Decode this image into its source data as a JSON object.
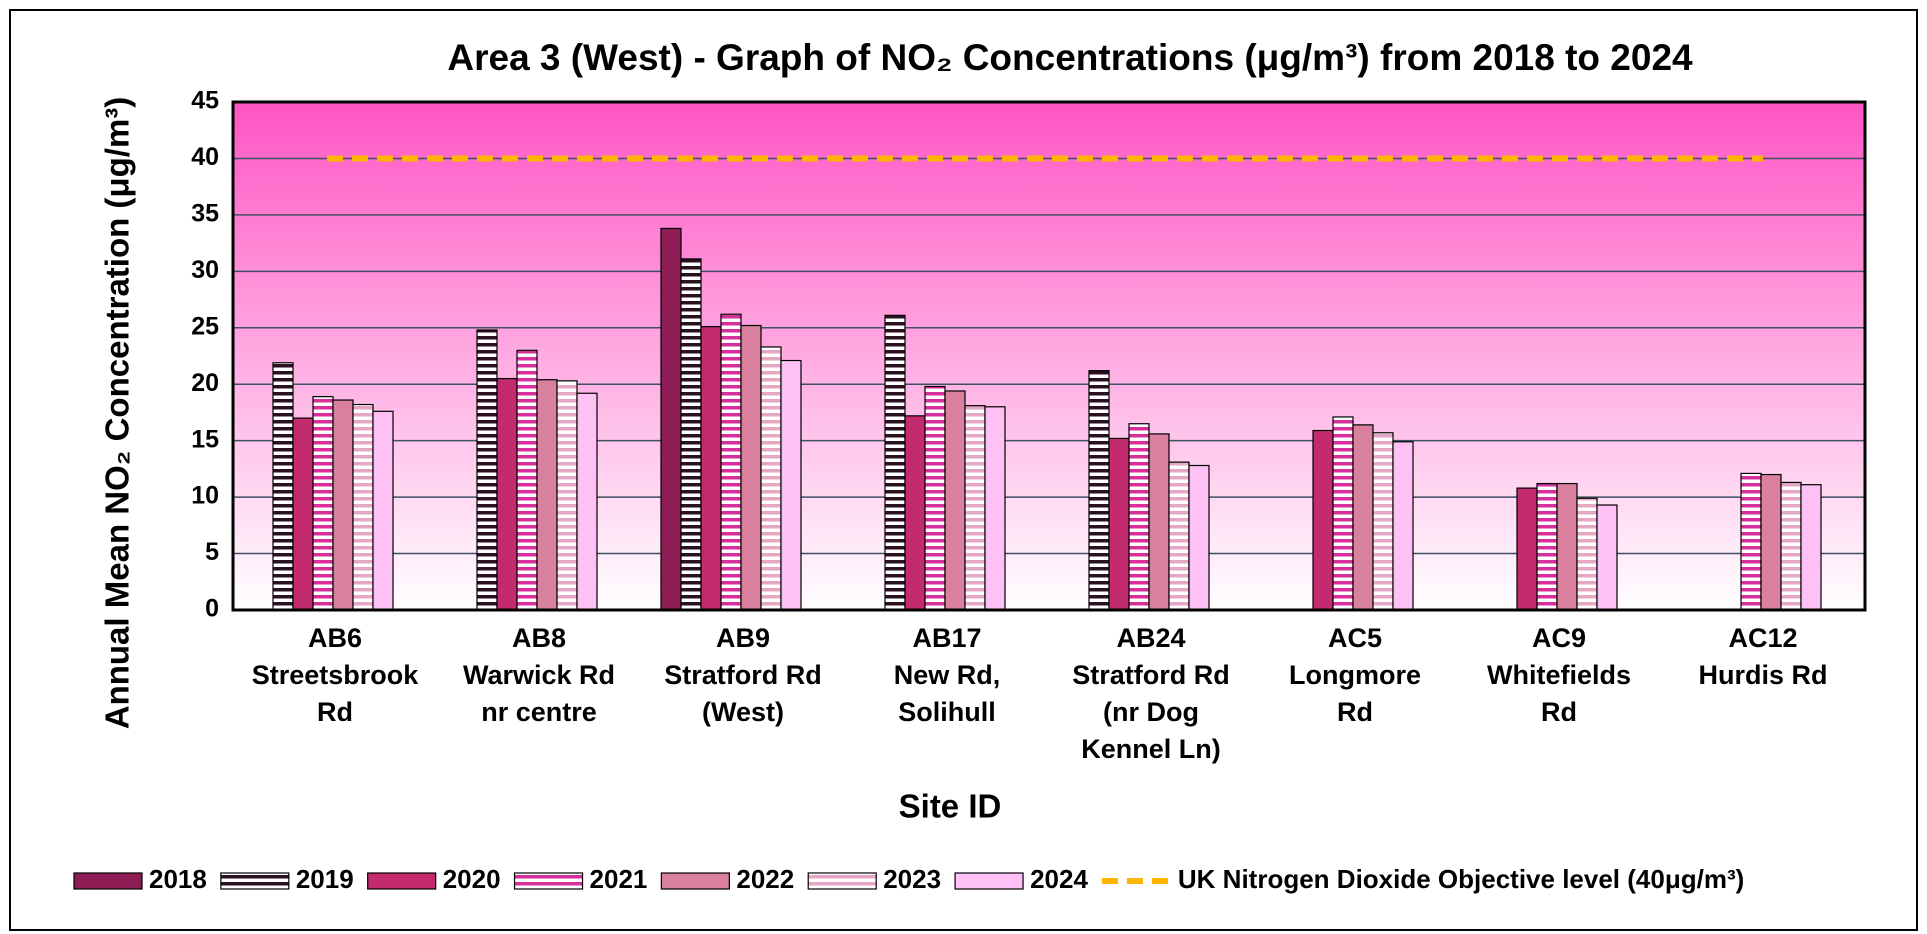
{
  "chart_data": {
    "type": "bar",
    "title": "Area 3 (West) - Graph of NO₂ Concentrations (μg/m³) from 2018 to 2024",
    "x_label": "Site ID",
    "y_label": "Annual Mean NO₂ Concentration (μg/m³)",
    "categories": [
      [
        "AB6",
        "Streetsbrook",
        "Rd"
      ],
      [
        "AB8",
        "Warwick Rd",
        "nr centre"
      ],
      [
        "AB9",
        "Stratford Rd",
        "(West)"
      ],
      [
        "AB17",
        "New Rd,",
        "Solihull"
      ],
      [
        "AB24",
        "Stratford Rd",
        "(nr Dog",
        "Kennel Ln)"
      ],
      [
        "AC5",
        "Longmore",
        "Rd"
      ],
      [
        "AC9",
        "Whitefields",
        "Rd"
      ],
      [
        "AC12",
        "Hurdis Rd"
      ]
    ],
    "series": [
      {
        "name": "2018",
        "color": "#8e1d55",
        "pattern": "solid",
        "values": [
          null,
          null,
          33.8,
          null,
          null,
          null,
          null,
          null
        ]
      },
      {
        "name": "2019",
        "color": "#2a1020",
        "pattern": "striped",
        "values": [
          21.9,
          24.8,
          31.1,
          26.1,
          21.2,
          null,
          null,
          null
        ]
      },
      {
        "name": "2020",
        "color": "#c42a6e",
        "pattern": "solid",
        "values": [
          17.0,
          20.5,
          25.1,
          17.2,
          15.2,
          15.9,
          10.8,
          null
        ]
      },
      {
        "name": "2021",
        "color": "#d62f9c",
        "pattern": "striped",
        "values": [
          18.9,
          23.0,
          26.2,
          19.8,
          16.5,
          17.1,
          11.2,
          12.1
        ]
      },
      {
        "name": "2022",
        "color": "#d9809f",
        "pattern": "solid",
        "values": [
          18.6,
          20.4,
          25.2,
          19.4,
          15.6,
          16.4,
          11.2,
          12.0
        ]
      },
      {
        "name": "2023",
        "color": "#e6a7c6",
        "pattern": "striped",
        "values": [
          18.2,
          20.3,
          23.3,
          18.1,
          13.1,
          15.7,
          9.9,
          11.3
        ]
      },
      {
        "name": "2024",
        "color": "#ffc0f5",
        "pattern": "solid",
        "values": [
          17.6,
          19.2,
          22.1,
          18.0,
          12.8,
          14.9,
          9.3,
          11.1
        ]
      }
    ],
    "objective": {
      "name": "UK Nitrogen Dioxide Objective level (40μg/m³)",
      "value": 40,
      "color": "#ffb400"
    },
    "ylim": [
      0,
      45
    ],
    "yticks": [
      0,
      5,
      10,
      15,
      20,
      25,
      30,
      35,
      40,
      45
    ],
    "grid": true,
    "background": [
      "#ff55c4",
      "#ffffff"
    ],
    "legend": "bottom"
  }
}
